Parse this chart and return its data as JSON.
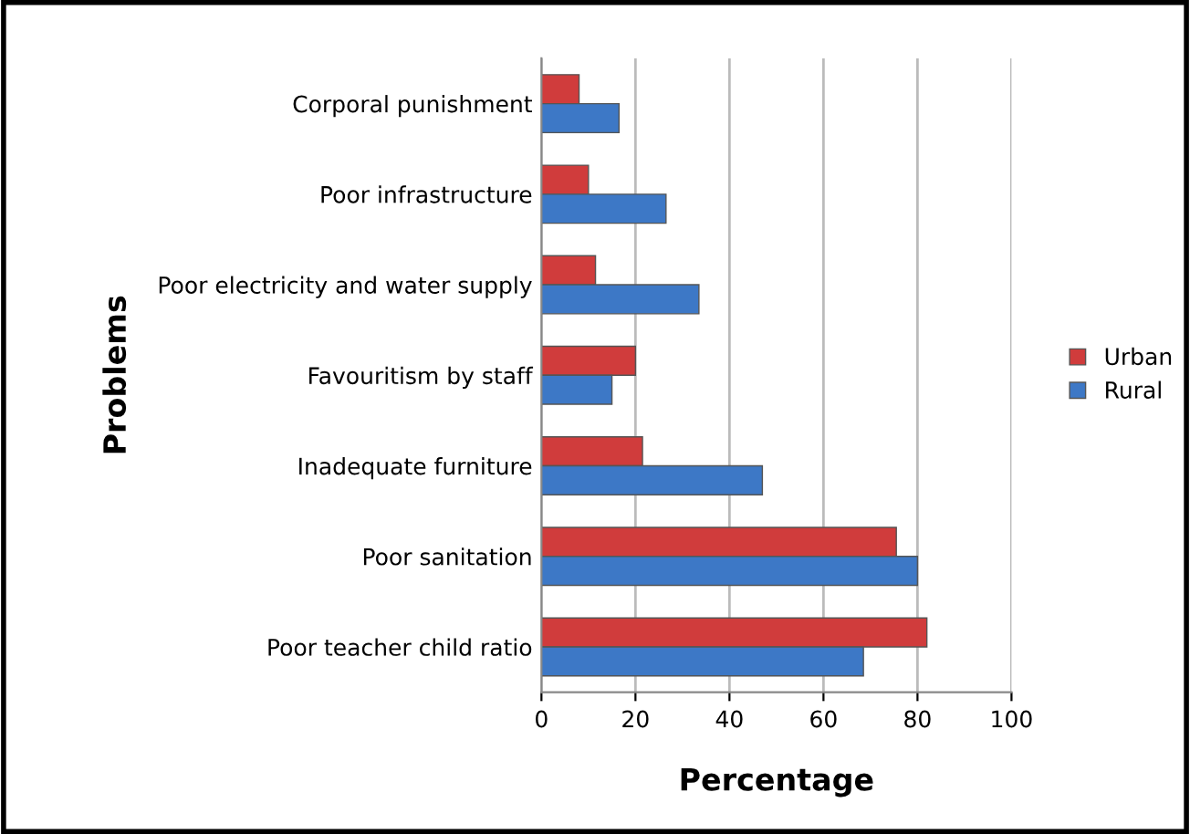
{
  "chart_data": {
    "type": "bar",
    "orientation": "horizontal",
    "xlabel": "Percentage",
    "ylabel": "Problems",
    "categories": [
      "Corporal punishment",
      "Poor infrastructure",
      "Poor electricity and water supply",
      "Favouritism by staff",
      "Inadequate furniture",
      "Poor sanitation",
      "Poor teacher child ratio"
    ],
    "series": [
      {
        "name": "Urban",
        "color": "#d03c3c",
        "values": [
          8,
          10,
          11.5,
          20,
          21.5,
          75.5,
          82
        ]
      },
      {
        "name": "Rural",
        "color": "#3d78c6",
        "values": [
          16.5,
          26.5,
          33.5,
          15,
          47,
          80,
          68.5
        ]
      }
    ],
    "xlim": [
      0,
      100
    ],
    "xticks": [
      0,
      20,
      40,
      60,
      80,
      100
    ],
    "grid": "x",
    "legend": "right"
  }
}
